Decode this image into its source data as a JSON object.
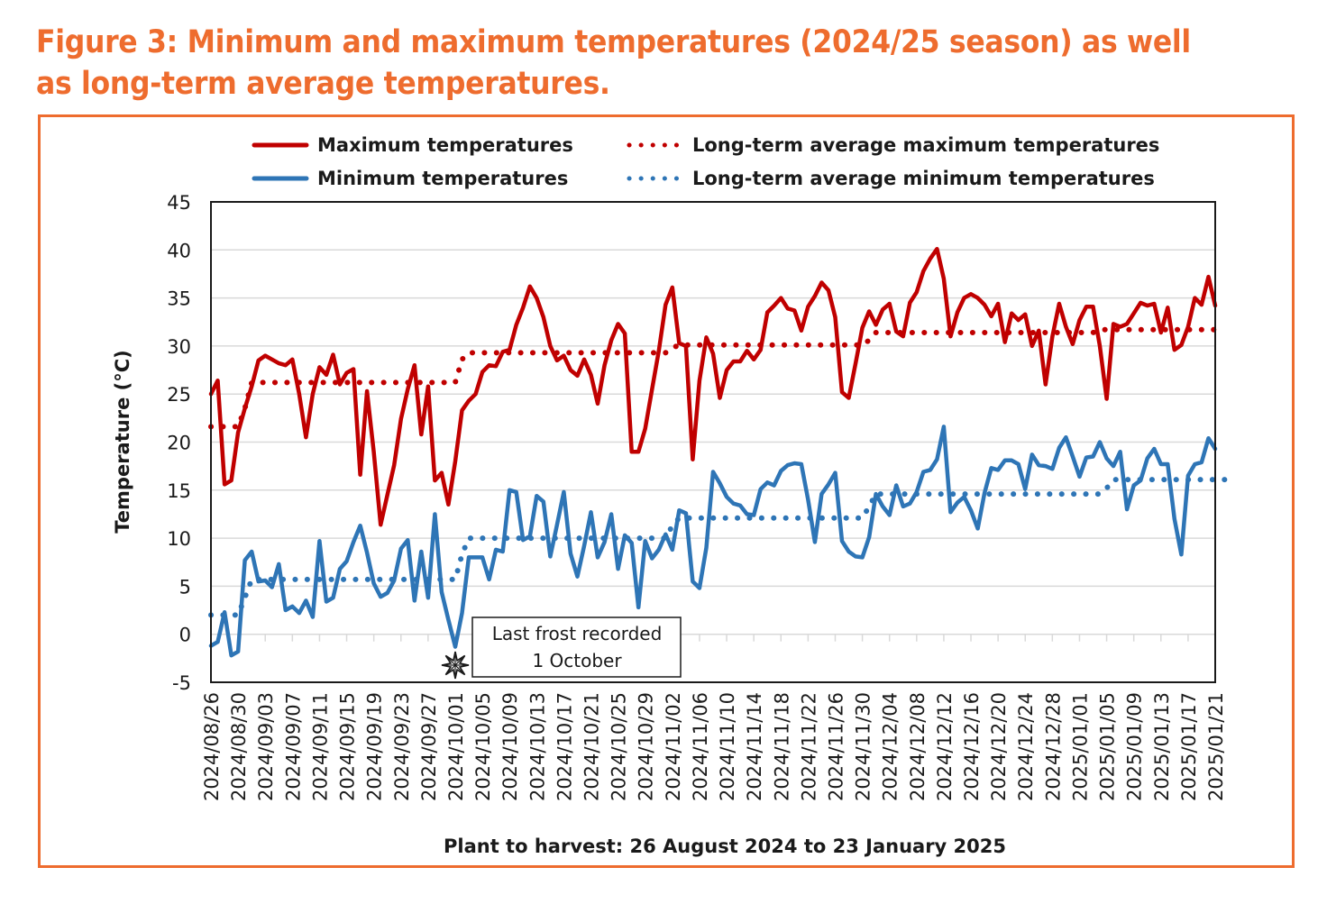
{
  "figure": {
    "title_line1": "Figure 3: Minimum and maximum temperatures (2024/25 season) as well",
    "title_line2": "as long-term average temperatures."
  },
  "chart_data": {
    "type": "line",
    "title": "Figure 3: Minimum and maximum temperatures (2024/25 season) as well as long-term average temperatures.",
    "xlabel": "Plant to harvest: 26 August 2024 to 23 January 2025",
    "ylabel": "Temperature (°C)",
    "ylim": [
      -5,
      45
    ],
    "yticks": [
      -5,
      0,
      5,
      10,
      15,
      20,
      25,
      30,
      35,
      40,
      45
    ],
    "grid": "horizontal",
    "legend_position": "top",
    "x_start": "2024/08/26",
    "x_end": "2025/01/21",
    "x_step_days": 1,
    "xtick_labels": [
      "2024/08/26",
      "2024/08/30",
      "2024/09/03",
      "2024/09/07",
      "2024/09/11",
      "2024/09/15",
      "2024/09/19",
      "2024/09/23",
      "2024/09/27",
      "2024/10/01",
      "2024/10/05",
      "2024/10/09",
      "2024/10/13",
      "2024/10/17",
      "2024/10/21",
      "2024/10/25",
      "2024/10/29",
      "2024/11/02",
      "2024/11/06",
      "2024/11/10",
      "2024/11/14",
      "2024/11/18",
      "2024/11/22",
      "2024/11/26",
      "2024/11/30",
      "2024/12/04",
      "2024/12/08",
      "2024/12/12",
      "2024/12/16",
      "2024/12/20",
      "2024/12/24",
      "2024/12/28",
      "2025/01/01",
      "2025/01/05",
      "2025/01/09",
      "2025/01/13",
      "2025/01/17",
      "2025/01/21"
    ],
    "series": [
      {
        "name": "Maximum temperatures",
        "color": "#c00000",
        "style": "solid",
        "values": [
          25.0,
          26.4,
          15.6,
          16.0,
          21.0,
          23.5,
          25.8,
          28.5,
          29.0,
          28.6,
          28.2,
          28.0,
          28.6,
          25.0,
          20.5,
          25.0,
          27.8,
          27.0,
          29.1,
          26.0,
          27.2,
          27.6,
          16.6,
          25.3,
          19.0,
          11.4,
          14.5,
          17.6,
          22.4,
          25.5,
          28.0,
          20.8,
          25.8,
          16.0,
          16.8,
          13.5,
          18.0,
          23.3,
          24.3,
          25.0,
          27.3,
          28.0,
          27.9,
          29.4,
          29.6,
          32.2,
          34.0,
          36.2,
          35.0,
          33.0,
          30.0,
          28.5,
          29.0,
          27.5,
          26.9,
          28.6,
          27.0,
          24.0,
          28.0,
          30.6,
          32.3,
          31.3,
          19.0,
          19.0,
          21.4,
          25.5,
          29.5,
          34.3,
          36.1,
          30.3,
          30.0,
          18.2,
          26.4,
          30.9,
          29.2,
          24.6,
          27.5,
          28.4,
          28.4,
          29.5,
          28.6,
          29.6,
          33.5,
          34.2,
          35.0,
          33.9,
          33.7,
          31.6,
          34.1,
          35.2,
          36.6,
          35.8,
          33.0,
          25.2,
          24.6,
          28.2,
          31.9,
          33.6,
          32.2,
          33.8,
          34.4,
          31.5,
          31.0,
          34.5,
          35.6,
          37.8,
          39.1,
          40.1,
          37.0,
          31.0,
          33.5,
          35.0,
          35.4,
          35.0,
          34.3,
          33.1,
          34.4,
          30.4,
          33.4,
          32.7,
          33.3,
          30.0,
          31.6,
          26.0,
          31.0,
          34.4,
          32.0,
          30.2,
          32.7,
          34.1,
          34.1,
          30.0,
          24.5,
          32.3,
          32.0,
          32.3,
          33.4,
          34.5,
          34.2,
          34.4,
          31.4,
          34.0,
          29.6,
          30.1,
          32.0,
          35.0,
          34.3,
          37.2,
          34.2
        ]
      },
      {
        "name": "Minimum temperatures",
        "color": "#2e75b6",
        "style": "solid",
        "values": [
          -1.2,
          -0.8,
          2.3,
          -2.2,
          -1.8,
          7.7,
          8.6,
          5.5,
          5.6,
          4.9,
          7.3,
          2.5,
          2.9,
          2.2,
          3.5,
          1.8,
          9.7,
          3.4,
          3.8,
          6.8,
          7.6,
          9.6,
          11.3,
          8.5,
          5.3,
          3.9,
          4.3,
          5.6,
          8.9,
          9.8,
          3.5,
          8.6,
          3.8,
          12.5,
          4.4,
          1.5,
          -1.3,
          2.2,
          8.0,
          8.0,
          8.0,
          5.7,
          8.8,
          8.6,
          15.0,
          14.8,
          9.8,
          10.2,
          14.4,
          13.8,
          8.1,
          11.4,
          14.8,
          8.4,
          6.0,
          9.2,
          12.7,
          8.0,
          9.6,
          12.5,
          6.8,
          10.3,
          9.5,
          2.8,
          9.7,
          7.9,
          8.8,
          10.4,
          8.8,
          12.9,
          12.6,
          5.5,
          4.8,
          9.0,
          16.9,
          15.7,
          14.3,
          13.6,
          13.4,
          12.5,
          12.4,
          15.1,
          15.8,
          15.5,
          17.0,
          17.6,
          17.8,
          17.7,
          14.0,
          9.6,
          14.6,
          15.6,
          16.8,
          9.7,
          8.6,
          8.1,
          8.0,
          10.1,
          14.6,
          13.3,
          12.4,
          15.5,
          13.3,
          13.6,
          14.8,
          16.9,
          17.1,
          18.2,
          21.6,
          12.7,
          13.7,
          14.3,
          12.9,
          11.0,
          14.7,
          17.3,
          17.1,
          18.1,
          18.1,
          17.7,
          15.1,
          18.7,
          17.6,
          17.5,
          17.2,
          19.4,
          20.5,
          18.5,
          16.4,
          18.4,
          18.5,
          20.0,
          18.3,
          17.5,
          19.0,
          13.0,
          15.5,
          16.0,
          18.3,
          19.3,
          17.7,
          17.7,
          12.0,
          8.3,
          16.5,
          17.7,
          17.9,
          20.4,
          19.3
        ]
      },
      {
        "name": "Long-term average maximum temperatures",
        "color": "#c00000",
        "style": "dotted",
        "values": [
          21.6,
          21.6,
          21.6,
          21.6,
          21.6,
          23.5,
          26.2,
          26.2,
          26.2,
          26.2,
          26.2,
          26.2,
          26.2,
          26.2,
          26.2,
          26.2,
          26.2,
          26.2,
          26.2,
          26.2,
          26.2,
          26.2,
          26.2,
          26.2,
          26.2,
          26.2,
          26.2,
          26.2,
          26.2,
          26.2,
          26.2,
          26.2,
          26.2,
          26.2,
          26.2,
          26.2,
          26.2,
          28.6,
          29.3,
          29.3,
          29.3,
          29.3,
          29.3,
          29.3,
          29.3,
          29.3,
          29.3,
          29.3,
          29.3,
          29.3,
          29.3,
          29.3,
          29.3,
          29.3,
          29.3,
          29.3,
          29.3,
          29.3,
          29.3,
          29.3,
          29.3,
          29.3,
          29.3,
          29.3,
          29.3,
          29.3,
          29.3,
          29.3,
          29.8,
          30.1,
          30.1,
          30.1,
          30.1,
          30.1,
          30.1,
          30.1,
          30.1,
          30.1,
          30.1,
          30.1,
          30.1,
          30.1,
          30.1,
          30.1,
          30.1,
          30.1,
          30.1,
          30.1,
          30.1,
          30.1,
          30.1,
          30.1,
          30.1,
          30.1,
          30.1,
          30.1,
          30.1,
          30.6,
          31.4,
          31.4,
          31.4,
          31.4,
          31.4,
          31.4,
          31.4,
          31.4,
          31.4,
          31.4,
          31.4,
          31.4,
          31.4,
          31.4,
          31.4,
          31.4,
          31.4,
          31.4,
          31.4,
          31.4,
          31.4,
          31.4,
          31.4,
          31.4,
          31.4,
          31.4,
          31.4,
          31.4,
          31.4,
          31.4,
          31.4,
          31.4,
          31.4,
          31.7,
          31.7,
          31.7,
          31.7,
          31.7,
          31.7,
          31.7,
          31.7,
          31.7,
          31.7,
          31.7,
          31.7,
          31.7,
          31.7,
          31.7,
          31.7,
          31.7,
          31.7
        ]
      },
      {
        "name": "Long-term average minimum temperatures",
        "color": "#2e75b6",
        "style": "dotted",
        "values": [
          2.0,
          2.0,
          2.0,
          2.0,
          2.0,
          3.8,
          5.7,
          5.7,
          5.7,
          5.7,
          5.7,
          5.7,
          5.7,
          5.7,
          5.7,
          5.7,
          5.7,
          5.7,
          5.7,
          5.7,
          5.7,
          5.7,
          5.7,
          5.7,
          5.7,
          5.7,
          5.7,
          5.7,
          5.7,
          5.7,
          5.7,
          5.7,
          5.7,
          5.7,
          5.7,
          5.7,
          5.7,
          8.3,
          10.0,
          10.0,
          10.0,
          10.0,
          10.0,
          10.0,
          10.0,
          10.0,
          10.0,
          10.0,
          10.0,
          10.0,
          10.0,
          10.0,
          10.0,
          10.0,
          10.0,
          10.0,
          10.0,
          10.0,
          10.0,
          10.0,
          10.0,
          10.0,
          10.0,
          10.0,
          10.0,
          10.0,
          10.0,
          10.0,
          11.3,
          12.1,
          12.1,
          12.1,
          12.1,
          12.1,
          12.1,
          12.1,
          12.1,
          12.1,
          12.1,
          12.1,
          12.1,
          12.1,
          12.1,
          12.1,
          12.1,
          12.1,
          12.1,
          12.1,
          12.1,
          12.1,
          12.1,
          12.1,
          12.1,
          12.1,
          12.1,
          12.1,
          12.1,
          13.3,
          14.6,
          14.6,
          14.6,
          14.6,
          14.6,
          14.6,
          14.6,
          14.6,
          14.6,
          14.6,
          14.6,
          14.6,
          14.6,
          14.6,
          14.6,
          14.6,
          14.6,
          14.6,
          14.6,
          14.6,
          14.6,
          14.6,
          14.6,
          14.6,
          14.6,
          14.6,
          14.6,
          14.6,
          14.6,
          14.6,
          14.6,
          14.6,
          14.6,
          14.6,
          15.2,
          16.1,
          16.1,
          16.1,
          16.1,
          16.1,
          16.1,
          16.1,
          16.1,
          16.1,
          16.1,
          16.1,
          16.1,
          16.1,
          16.1,
          16.1,
          16.1,
          16.1,
          16.1
        ]
      }
    ],
    "annotations": [
      {
        "text_line1": "Last frost recorded",
        "text_line2": "1 October",
        "date": "2024/10/01",
        "marker": "frost-star"
      }
    ]
  }
}
